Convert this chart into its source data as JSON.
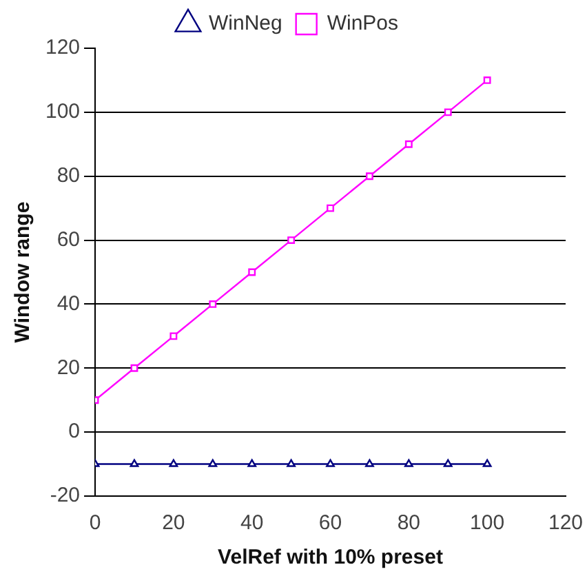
{
  "chart_data": {
    "type": "line",
    "xlabel": "VelRef with 10% preset",
    "ylabel": "Window range",
    "x": [
      0,
      10,
      20,
      30,
      40,
      50,
      60,
      70,
      80,
      90,
      100
    ],
    "series": [
      {
        "name": "WinNeg",
        "color": "#000080",
        "marker": "triangle",
        "values": [
          -10,
          -10,
          -10,
          -10,
          -10,
          -10,
          -10,
          -10,
          -10,
          -10,
          -10
        ]
      },
      {
        "name": "WinPos",
        "color": "#ff00ff",
        "marker": "square",
        "values": [
          10,
          20,
          30,
          40,
          50,
          60,
          70,
          80,
          90,
          100,
          110
        ]
      }
    ],
    "xlim": [
      0,
      120
    ],
    "xticks": [
      0,
      20,
      40,
      60,
      80,
      100,
      120
    ],
    "ylim": [
      -20,
      120
    ],
    "yticks": [
      -20,
      0,
      20,
      40,
      60,
      80,
      100,
      120
    ],
    "grid": "y",
    "legend": "top"
  }
}
